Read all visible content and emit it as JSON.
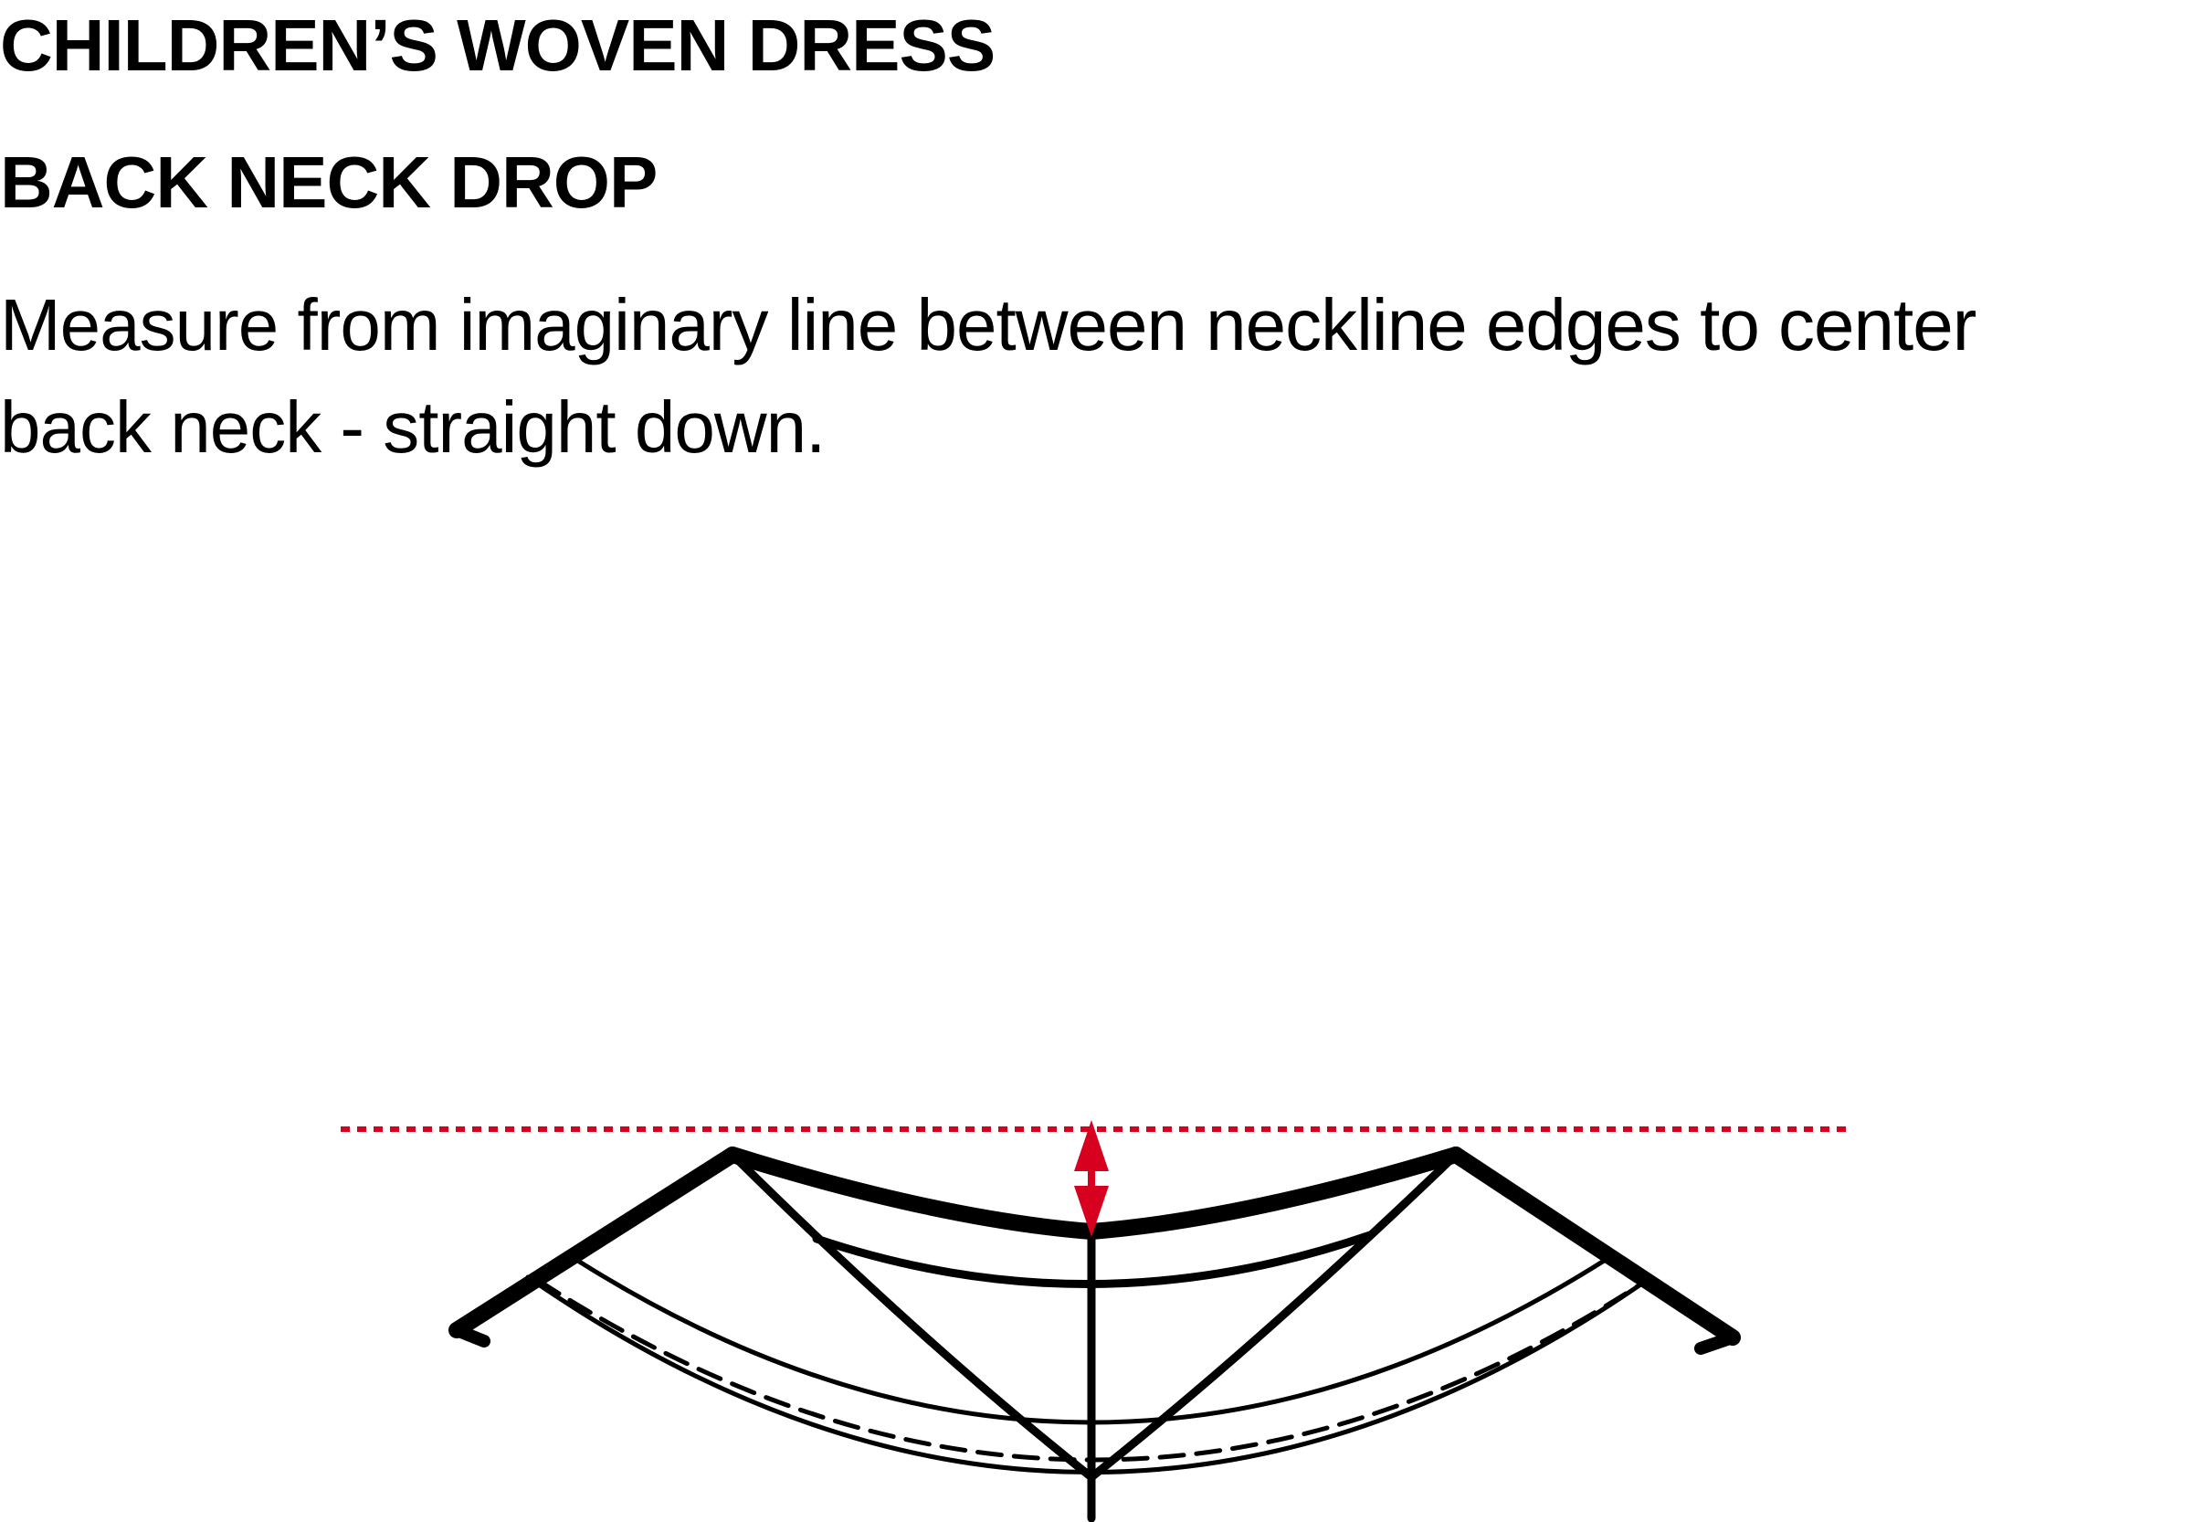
{
  "header": {
    "title": "CHILDREN’S WOVEN DRESS",
    "subtitle": "BACK NECK DROP",
    "description": "Measure from imaginary line between neckline edges to center back neck - straight down."
  },
  "colors": {
    "ink": "#000000",
    "measure_accent": "#d8001f",
    "background": "#ffffff"
  },
  "diagram": {
    "measurement": "back-neck-drop",
    "reference_line_style": "dotted",
    "arrow_style": "double-headed vertical"
  }
}
